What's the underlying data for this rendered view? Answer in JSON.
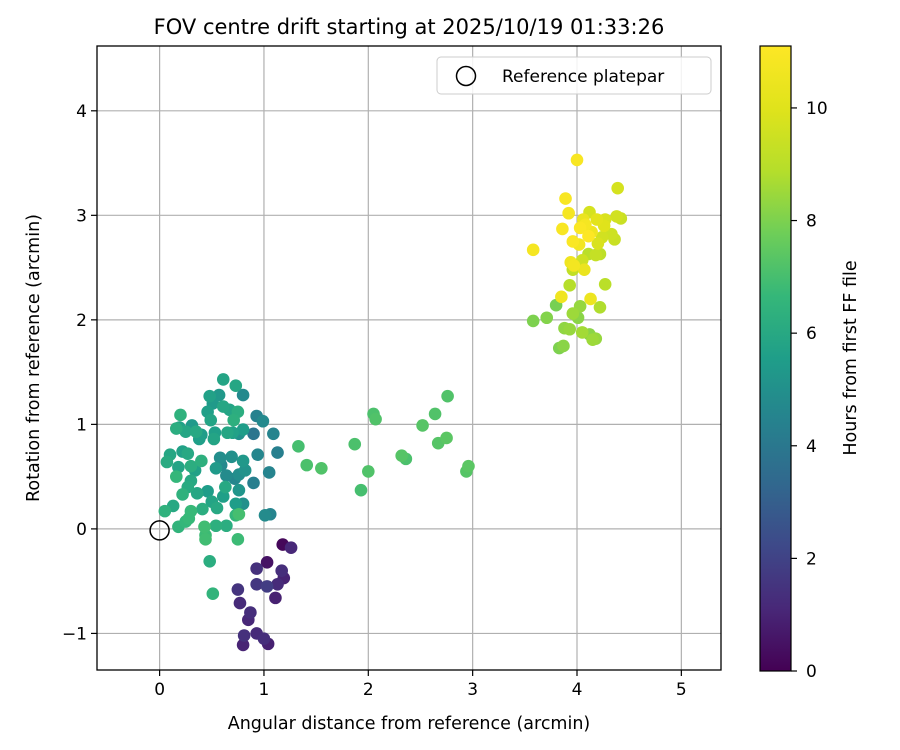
{
  "chart_data": {
    "type": "scatter",
    "title": "FOV centre drift starting at 2025/10/19 01:33:26",
    "xlabel": "Angular distance from reference (arcmin)",
    "ylabel": "Rotation from reference (arcmin)",
    "xlim": [
      -0.6,
      5.38
    ],
    "ylim": [
      -1.35,
      4.62
    ],
    "xticks": [
      0,
      1,
      2,
      3,
      4,
      5
    ],
    "yticks": [
      -1,
      0,
      1,
      2,
      3,
      4
    ],
    "grid": true,
    "legend": {
      "placement": "top-right",
      "entries": [
        "Reference platepar"
      ]
    },
    "reference_point": {
      "x": 0,
      "y": 0
    },
    "colorbar": {
      "label": "Hours from first FF file",
      "range": [
        0,
        11.1
      ],
      "ticks": [
        0,
        2,
        4,
        6,
        8,
        10
      ],
      "colormap": "viridis"
    },
    "points": [
      {
        "x": 1.18,
        "y": -0.15,
        "h": 0.2
      },
      {
        "x": 1.03,
        "y": -0.32,
        "h": 0.5
      },
      {
        "x": 1.26,
        "y": -0.18,
        "h": 1.1
      },
      {
        "x": 1.17,
        "y": -0.4,
        "h": 1.3
      },
      {
        "x": 1.19,
        "y": -0.47,
        "h": 1.0
      },
      {
        "x": 0.93,
        "y": -0.38,
        "h": 1.4
      },
      {
        "x": 0.93,
        "y": -0.53,
        "h": 1.6
      },
      {
        "x": 1.03,
        "y": -0.55,
        "h": 1.8
      },
      {
        "x": 1.13,
        "y": -0.53,
        "h": 1.2
      },
      {
        "x": 1.11,
        "y": -0.66,
        "h": 0.9
      },
      {
        "x": 0.75,
        "y": -0.58,
        "h": 1.5
      },
      {
        "x": 0.77,
        "y": -0.71,
        "h": 1.2
      },
      {
        "x": 0.87,
        "y": -0.8,
        "h": 1.3
      },
      {
        "x": 0.85,
        "y": -0.87,
        "h": 1.1
      },
      {
        "x": 0.93,
        "y": -1.0,
        "h": 1.2
      },
      {
        "x": 0.81,
        "y": -1.02,
        "h": 1.4
      },
      {
        "x": 0.8,
        "y": -1.11,
        "h": 1.0
      },
      {
        "x": 1.0,
        "y": -1.05,
        "h": 1.3
      },
      {
        "x": 1.04,
        "y": -1.1,
        "h": 0.9
      },
      {
        "x": 0.05,
        "y": 0.17,
        "h": 6.4
      },
      {
        "x": 0.13,
        "y": 0.22,
        "h": 6.0
      },
      {
        "x": 0.18,
        "y": 0.02,
        "h": 6.5
      },
      {
        "x": 0.25,
        "y": 0.07,
        "h": 6.6
      },
      {
        "x": 0.28,
        "y": 0.1,
        "h": 6.7
      },
      {
        "x": 0.43,
        "y": 0.02,
        "h": 6.9
      },
      {
        "x": 0.44,
        "y": -0.06,
        "h": 6.8
      },
      {
        "x": 0.44,
        "y": -0.1,
        "h": 6.9
      },
      {
        "x": 0.48,
        "y": -0.31,
        "h": 6.2
      },
      {
        "x": 0.51,
        "y": -0.62,
        "h": 6.5
      },
      {
        "x": 0.54,
        "y": 0.03,
        "h": 6.3
      },
      {
        "x": 0.64,
        "y": 0.03,
        "h": 6.2
      },
      {
        "x": 0.75,
        "y": -0.1,
        "h": 6.8
      },
      {
        "x": 0.73,
        "y": 0.13,
        "h": 6.6
      },
      {
        "x": 0.76,
        "y": 0.14,
        "h": 7.0
      },
      {
        "x": 1.01,
        "y": 0.13,
        "h": 4.8
      },
      {
        "x": 1.06,
        "y": 0.14,
        "h": 4.5
      },
      {
        "x": 0.3,
        "y": 0.17,
        "h": 6.7
      },
      {
        "x": 0.41,
        "y": 0.19,
        "h": 6.2
      },
      {
        "x": 0.5,
        "y": 0.26,
        "h": 5.8
      },
      {
        "x": 0.55,
        "y": 0.2,
        "h": 6.0
      },
      {
        "x": 0.46,
        "y": 0.36,
        "h": 5.5
      },
      {
        "x": 0.36,
        "y": 0.34,
        "h": 5.9
      },
      {
        "x": 0.27,
        "y": 0.4,
        "h": 6.1
      },
      {
        "x": 0.22,
        "y": 0.33,
        "h": 6.4
      },
      {
        "x": 0.34,
        "y": 0.56,
        "h": 5.7
      },
      {
        "x": 0.3,
        "y": 0.46,
        "h": 6.0
      },
      {
        "x": 0.16,
        "y": 0.5,
        "h": 6.6
      },
      {
        "x": 0.18,
        "y": 0.59,
        "h": 5.8
      },
      {
        "x": 0.07,
        "y": 0.64,
        "h": 6.1
      },
      {
        "x": 0.1,
        "y": 0.71,
        "h": 5.9
      },
      {
        "x": 0.22,
        "y": 0.74,
        "h": 5.7
      },
      {
        "x": 0.27,
        "y": 0.72,
        "h": 6.0
      },
      {
        "x": 0.3,
        "y": 0.6,
        "h": 6.2
      },
      {
        "x": 0.4,
        "y": 0.65,
        "h": 6.3
      },
      {
        "x": 0.54,
        "y": 0.58,
        "h": 5.4
      },
      {
        "x": 0.59,
        "y": 0.61,
        "h": 4.7
      },
      {
        "x": 0.58,
        "y": 0.68,
        "h": 4.9
      },
      {
        "x": 0.69,
        "y": 0.69,
        "h": 5.0
      },
      {
        "x": 0.64,
        "y": 0.51,
        "h": 4.8
      },
      {
        "x": 0.72,
        "y": 0.48,
        "h": 4.6
      },
      {
        "x": 0.76,
        "y": 0.52,
        "h": 4.9
      },
      {
        "x": 0.8,
        "y": 0.65,
        "h": 5.3
      },
      {
        "x": 0.82,
        "y": 0.56,
        "h": 5.1
      },
      {
        "x": 0.76,
        "y": 0.37,
        "h": 5.2
      },
      {
        "x": 0.61,
        "y": 0.31,
        "h": 5.6
      },
      {
        "x": 0.63,
        "y": 0.4,
        "h": 6.0
      },
      {
        "x": 0.73,
        "y": 0.24,
        "h": 5.5
      },
      {
        "x": 0.8,
        "y": 0.24,
        "h": 5.0
      },
      {
        "x": 0.9,
        "y": 0.44,
        "h": 4.3
      },
      {
        "x": 0.94,
        "y": 0.71,
        "h": 4.6
      },
      {
        "x": 1.05,
        "y": 0.54,
        "h": 4.5
      },
      {
        "x": 1.13,
        "y": 0.73,
        "h": 4.3
      },
      {
        "x": 1.09,
        "y": 0.91,
        "h": 4.5
      },
      {
        "x": 0.99,
        "y": 1.03,
        "h": 4.7
      },
      {
        "x": 0.93,
        "y": 1.08,
        "h": 4.4
      },
      {
        "x": 0.9,
        "y": 0.91,
        "h": 3.9
      },
      {
        "x": 0.8,
        "y": 0.95,
        "h": 5.5
      },
      {
        "x": 0.76,
        "y": 0.91,
        "h": 5.0
      },
      {
        "x": 0.7,
        "y": 0.92,
        "h": 5.7
      },
      {
        "x": 0.65,
        "y": 0.92,
        "h": 5.9
      },
      {
        "x": 0.71,
        "y": 1.04,
        "h": 6.3
      },
      {
        "x": 0.75,
        "y": 1.12,
        "h": 6.2
      },
      {
        "x": 0.67,
        "y": 1.14,
        "h": 5.8
      },
      {
        "x": 0.61,
        "y": 1.17,
        "h": 5.9
      },
      {
        "x": 0.51,
        "y": 1.2,
        "h": 5.4
      },
      {
        "x": 0.46,
        "y": 1.12,
        "h": 5.6
      },
      {
        "x": 0.49,
        "y": 1.04,
        "h": 5.8
      },
      {
        "x": 0.48,
        "y": 1.27,
        "h": 5.7
      },
      {
        "x": 0.57,
        "y": 1.28,
        "h": 5.3
      },
      {
        "x": 0.61,
        "y": 1.43,
        "h": 5.8
      },
      {
        "x": 0.73,
        "y": 1.37,
        "h": 5.9
      },
      {
        "x": 0.8,
        "y": 1.28,
        "h": 4.7
      },
      {
        "x": 0.52,
        "y": 0.86,
        "h": 5.8
      },
      {
        "x": 0.53,
        "y": 0.92,
        "h": 5.6
      },
      {
        "x": 0.4,
        "y": 0.9,
        "h": 5.5
      },
      {
        "x": 0.35,
        "y": 0.93,
        "h": 6.0
      },
      {
        "x": 0.31,
        "y": 0.99,
        "h": 5.4
      },
      {
        "x": 0.25,
        "y": 0.93,
        "h": 5.9
      },
      {
        "x": 0.19,
        "y": 0.97,
        "h": 5.7
      },
      {
        "x": 0.16,
        "y": 0.96,
        "h": 6.2
      },
      {
        "x": 0.2,
        "y": 1.09,
        "h": 6.4
      },
      {
        "x": 0.38,
        "y": 0.86,
        "h": 5.6
      },
      {
        "x": 1.33,
        "y": 0.79,
        "h": 7.0
      },
      {
        "x": 1.41,
        "y": 0.61,
        "h": 7.1
      },
      {
        "x": 1.55,
        "y": 0.58,
        "h": 7.2
      },
      {
        "x": 1.87,
        "y": 0.81,
        "h": 7.1
      },
      {
        "x": 1.93,
        "y": 0.37,
        "h": 7.0
      },
      {
        "x": 2.0,
        "y": 0.55,
        "h": 7.2
      },
      {
        "x": 2.05,
        "y": 1.1,
        "h": 7.1
      },
      {
        "x": 2.07,
        "y": 1.05,
        "h": 7.2
      },
      {
        "x": 2.32,
        "y": 0.7,
        "h": 7.3
      },
      {
        "x": 2.36,
        "y": 0.67,
        "h": 7.1
      },
      {
        "x": 2.52,
        "y": 0.99,
        "h": 7.3
      },
      {
        "x": 2.64,
        "y": 1.1,
        "h": 7.2
      },
      {
        "x": 2.67,
        "y": 0.82,
        "h": 7.3
      },
      {
        "x": 2.75,
        "y": 0.87,
        "h": 7.4
      },
      {
        "x": 2.76,
        "y": 1.27,
        "h": 7.2
      },
      {
        "x": 2.94,
        "y": 0.55,
        "h": 7.3
      },
      {
        "x": 2.96,
        "y": 0.6,
        "h": 7.4
      },
      {
        "x": 3.58,
        "y": 1.99,
        "h": 8.0
      },
      {
        "x": 3.71,
        "y": 2.02,
        "h": 8.1
      },
      {
        "x": 3.8,
        "y": 2.14,
        "h": 7.9
      },
      {
        "x": 3.83,
        "y": 1.73,
        "h": 8.0
      },
      {
        "x": 3.87,
        "y": 1.75,
        "h": 8.2
      },
      {
        "x": 3.88,
        "y": 1.92,
        "h": 8.3
      },
      {
        "x": 3.93,
        "y": 1.91,
        "h": 8.4
      },
      {
        "x": 3.96,
        "y": 2.06,
        "h": 8.5
      },
      {
        "x": 4.01,
        "y": 2.02,
        "h": 8.2
      },
      {
        "x": 4.03,
        "y": 2.13,
        "h": 8.4
      },
      {
        "x": 4.05,
        "y": 1.88,
        "h": 8.6
      },
      {
        "x": 4.12,
        "y": 1.86,
        "h": 8.2
      },
      {
        "x": 4.15,
        "y": 1.81,
        "h": 8.5
      },
      {
        "x": 4.18,
        "y": 1.82,
        "h": 8.4
      },
      {
        "x": 4.22,
        "y": 2.12,
        "h": 8.8
      },
      {
        "x": 4.27,
        "y": 2.34,
        "h": 9.0
      },
      {
        "x": 4.13,
        "y": 2.2,
        "h": 10.5
      },
      {
        "x": 3.85,
        "y": 2.22,
        "h": 10.6
      },
      {
        "x": 3.93,
        "y": 2.33,
        "h": 8.9
      },
      {
        "x": 3.96,
        "y": 2.48,
        "h": 9.2
      },
      {
        "x": 3.94,
        "y": 2.55,
        "h": 10.6
      },
      {
        "x": 3.97,
        "y": 2.52,
        "h": 10.7
      },
      {
        "x": 4.05,
        "y": 2.57,
        "h": 9.5
      },
      {
        "x": 4.07,
        "y": 2.48,
        "h": 10.4
      },
      {
        "x": 4.11,
        "y": 2.63,
        "h": 9.0
      },
      {
        "x": 4.18,
        "y": 2.62,
        "h": 9.3
      },
      {
        "x": 4.22,
        "y": 2.63,
        "h": 9.1
      },
      {
        "x": 4.2,
        "y": 2.73,
        "h": 9.8
      },
      {
        "x": 4.24,
        "y": 2.79,
        "h": 9.6
      },
      {
        "x": 4.36,
        "y": 2.77,
        "h": 9.4
      },
      {
        "x": 3.58,
        "y": 2.67,
        "h": 10.8
      },
      {
        "x": 3.86,
        "y": 2.87,
        "h": 10.9
      },
      {
        "x": 3.96,
        "y": 2.75,
        "h": 11.0
      },
      {
        "x": 4.02,
        "y": 2.72,
        "h": 10.7
      },
      {
        "x": 4.03,
        "y": 2.88,
        "h": 11.0
      },
      {
        "x": 4.08,
        "y": 2.91,
        "h": 10.8
      },
      {
        "x": 4.11,
        "y": 2.8,
        "h": 11.1
      },
      {
        "x": 4.14,
        "y": 2.84,
        "h": 10.6
      },
      {
        "x": 4.06,
        "y": 2.96,
        "h": 10.4
      },
      {
        "x": 4.12,
        "y": 3.03,
        "h": 9.7
      },
      {
        "x": 4.19,
        "y": 2.96,
        "h": 10.1
      },
      {
        "x": 4.26,
        "y": 2.9,
        "h": 10.0
      },
      {
        "x": 4.27,
        "y": 2.96,
        "h": 9.8
      },
      {
        "x": 4.33,
        "y": 2.82,
        "h": 9.5
      },
      {
        "x": 4.38,
        "y": 2.99,
        "h": 9.6
      },
      {
        "x": 4.42,
        "y": 2.97,
        "h": 9.4
      },
      {
        "x": 3.92,
        "y": 3.02,
        "h": 10.8
      },
      {
        "x": 3.89,
        "y": 3.16,
        "h": 10.9
      },
      {
        "x": 4.39,
        "y": 3.26,
        "h": 9.7
      },
      {
        "x": 4.0,
        "y": 3.53,
        "h": 10.9
      }
    ]
  }
}
